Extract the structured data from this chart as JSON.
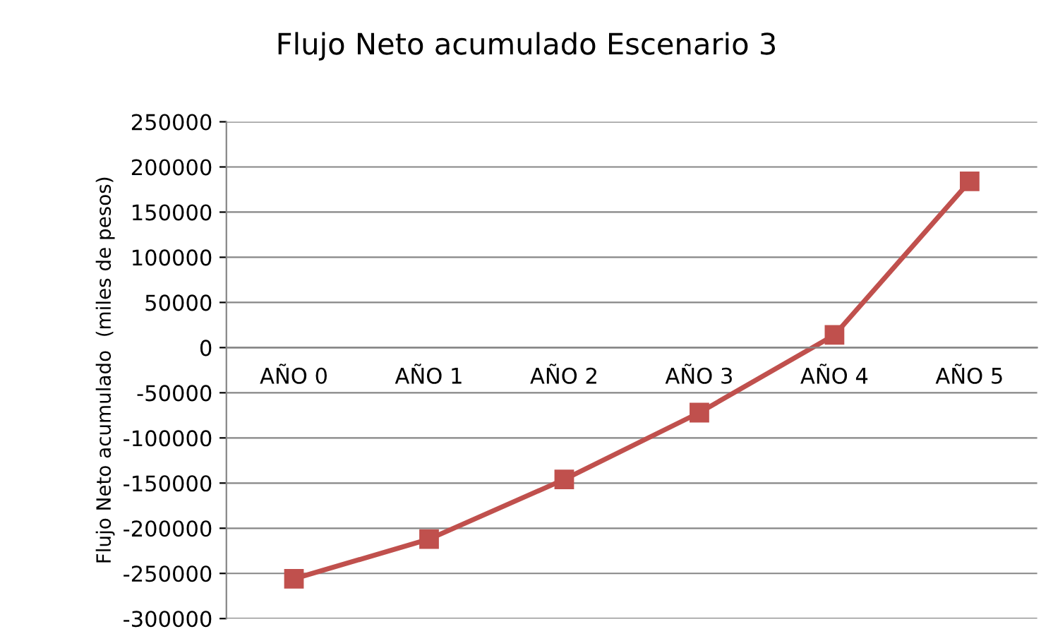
{
  "chart_data": {
    "type": "line",
    "title": "Flujo Neto acumulado Escenario 3",
    "ylabel": "Flujo Neto acumulado  (miles de pesos)",
    "categories": [
      "AÑO 0",
      "AÑO 1",
      "AÑO 2",
      "AÑO 3",
      "AÑO 4",
      "AÑO 5"
    ],
    "series": [
      {
        "color": "#c0504d",
        "values": [
          -256000,
          -212000,
          -146000,
          -72000,
          14000,
          184000
        ]
      }
    ],
    "ylim": [
      -300000,
      250000
    ],
    "yticks": [
      -300000,
      -250000,
      -200000,
      -150000,
      -100000,
      -50000,
      0,
      50000,
      100000,
      150000,
      200000,
      250000
    ],
    "grid": "y",
    "marker": "square",
    "line_style": "solid"
  }
}
